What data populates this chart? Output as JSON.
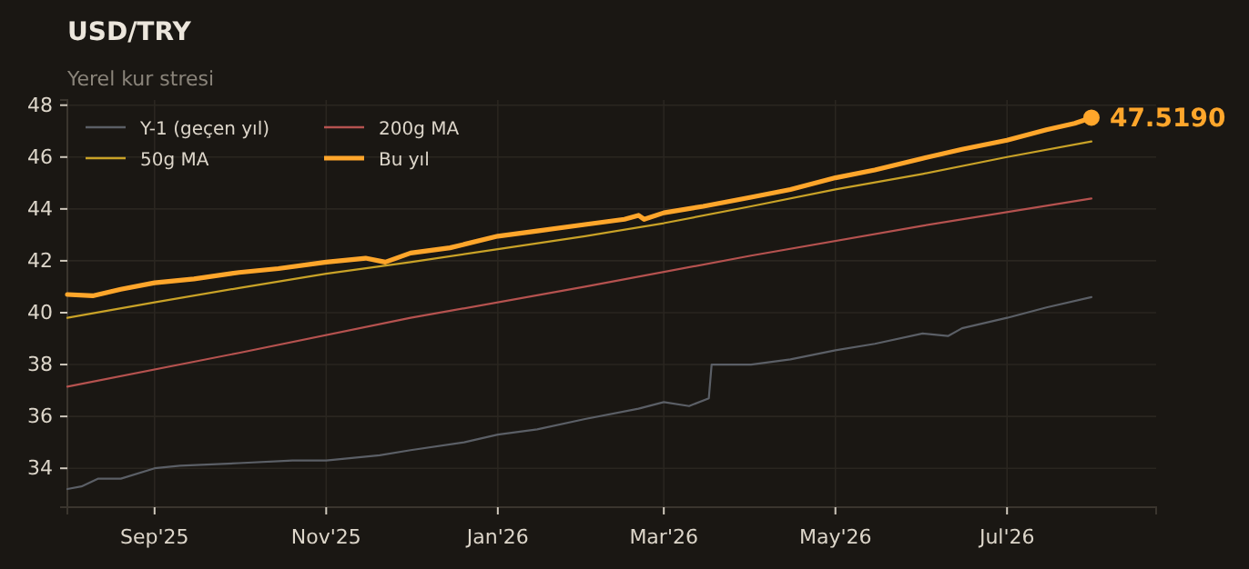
{
  "chart_data": {
    "type": "line",
    "title": "USD/TRY",
    "subtitle": "Yerel kur stresi",
    "xlim": [
      "2025-08-01",
      "2026-08-23"
    ],
    "xticks": [
      {
        "value": "2025-09-01",
        "label": "Sep'25"
      },
      {
        "value": "2025-11-01",
        "label": "Nov'25"
      },
      {
        "value": "2026-01-01",
        "label": "Jan'26"
      },
      {
        "value": "2026-03-01",
        "label": "Mar'26"
      },
      {
        "value": "2026-05-01",
        "label": "May'26"
      },
      {
        "value": "2026-07-01",
        "label": "Jul'26"
      }
    ],
    "ylim": [
      32.5,
      48.2
    ],
    "yticks": [
      34,
      36,
      38,
      40,
      42,
      44,
      46,
      48
    ],
    "grid": true,
    "legend": "top left",
    "annotations": [
      {
        "text": "47.5190",
        "x": "2026-07-31",
        "y": 47.519
      }
    ],
    "series": [
      {
        "name": "Y-1 (geçen yıl)",
        "color": "#5b5f66",
        "x": [
          "2025-08-01",
          "2025-08-06",
          "2025-08-12",
          "2025-08-20",
          "2025-09-01",
          "2025-09-10",
          "2025-10-01",
          "2025-10-20",
          "2025-11-01",
          "2025-11-20",
          "2025-12-01",
          "2025-12-20",
          "2026-01-01",
          "2026-01-15",
          "2026-02-01",
          "2026-02-20",
          "2026-03-01",
          "2026-03-10",
          "2026-03-17",
          "2026-03-18",
          "2026-04-01",
          "2026-04-15",
          "2026-05-01",
          "2026-05-15",
          "2026-06-01",
          "2026-06-10",
          "2026-06-15",
          "2026-07-01",
          "2026-07-15",
          "2026-07-31"
        ],
        "values": [
          33.2,
          33.3,
          33.6,
          33.6,
          34.0,
          34.1,
          34.2,
          34.3,
          34.3,
          34.5,
          34.7,
          35.0,
          35.3,
          35.5,
          35.9,
          36.3,
          36.55,
          36.4,
          36.7,
          38.0,
          38.0,
          38.2,
          38.55,
          38.8,
          39.2,
          39.1,
          39.4,
          39.8,
          40.2,
          40.6
        ]
      },
      {
        "name": "50g MA",
        "color": "#c9a227",
        "x": [
          "2025-08-01",
          "2025-09-01",
          "2025-10-01",
          "2025-11-01",
          "2025-12-01",
          "2026-01-01",
          "2026-02-01",
          "2026-03-01",
          "2026-04-01",
          "2026-05-01",
          "2026-06-01",
          "2026-07-01",
          "2026-07-31"
        ],
        "values": [
          39.8,
          40.4,
          40.95,
          41.5,
          41.95,
          42.45,
          42.95,
          43.45,
          44.1,
          44.75,
          45.35,
          46.0,
          46.6
        ]
      },
      {
        "name": "200g MA",
        "color": "#b5524f",
        "x": [
          "2025-08-01",
          "2025-10-01",
          "2025-12-01",
          "2026-02-01",
          "2026-04-01",
          "2026-06-01",
          "2026-07-31"
        ],
        "values": [
          37.15,
          38.45,
          39.8,
          41.0,
          42.2,
          43.35,
          44.4
        ]
      },
      {
        "name": "Bu yıl",
        "color": "#ffa62b",
        "x": [
          "2025-08-01",
          "2025-08-10",
          "2025-08-20",
          "2025-09-01",
          "2025-09-15",
          "2025-10-01",
          "2025-10-15",
          "2025-11-01",
          "2025-11-15",
          "2025-11-22",
          "2025-12-01",
          "2025-12-15",
          "2026-01-01",
          "2026-01-15",
          "2026-02-01",
          "2026-02-15",
          "2026-02-20",
          "2026-02-22",
          "2026-03-01",
          "2026-03-15",
          "2026-04-01",
          "2026-04-15",
          "2026-05-01",
          "2026-05-15",
          "2026-06-01",
          "2026-06-15",
          "2026-07-01",
          "2026-07-15",
          "2026-07-25",
          "2026-07-31"
        ],
        "values": [
          40.7,
          40.65,
          40.9,
          41.15,
          41.3,
          41.55,
          41.7,
          41.95,
          42.1,
          41.95,
          42.3,
          42.5,
          42.95,
          43.15,
          43.4,
          43.6,
          43.75,
          43.6,
          43.85,
          44.1,
          44.45,
          44.75,
          45.2,
          45.5,
          45.95,
          46.3,
          46.65,
          47.05,
          47.3,
          47.519
        ]
      }
    ]
  }
}
